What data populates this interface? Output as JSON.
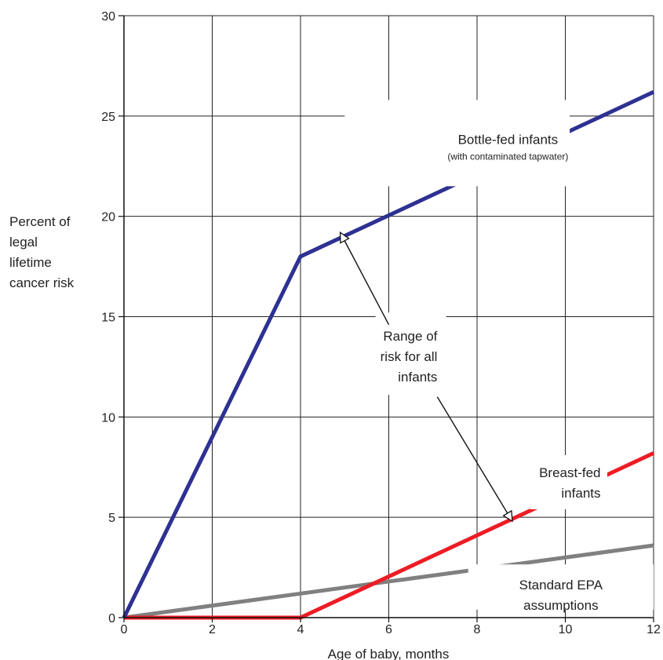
{
  "chart_data": {
    "type": "line",
    "title": "",
    "xlabel": "Age of baby, months",
    "ylabel": [
      "Percent of",
      "legal",
      "lifetime",
      "cancer risk"
    ],
    "xlim": [
      0,
      12
    ],
    "ylim": [
      0,
      30
    ],
    "x_ticks": [
      0,
      2,
      4,
      6,
      8,
      10,
      12
    ],
    "y_ticks": [
      0,
      5,
      10,
      15,
      20,
      25,
      30
    ],
    "grid": true,
    "legend": "none",
    "series": [
      {
        "name": "Bottle-fed infants",
        "color": "#2e3192",
        "points": [
          [
            0,
            0
          ],
          [
            4,
            18
          ],
          [
            12,
            26.2
          ]
        ]
      },
      {
        "name": "Breast-fed infants",
        "color": "#ed1c24",
        "points": [
          [
            0,
            0
          ],
          [
            4,
            0
          ],
          [
            12,
            8.2
          ]
        ]
      },
      {
        "name": "Standard EPA assumptions",
        "color": "#808080",
        "points": [
          [
            0,
            0
          ],
          [
            12,
            3.6
          ]
        ]
      }
    ],
    "annotations": [
      {
        "id": "bottle",
        "lines": [
          "Bottle-fed infants"
        ],
        "sub": "(with contaminated tapwater)",
        "x": 8.7,
        "y": 23.6,
        "anchor": "middle",
        "box": [
          5.0,
          21.5,
          10.1,
          25.8
        ]
      },
      {
        "id": "range",
        "lines": [
          "Range of",
          "risk for all",
          "infants"
        ],
        "x": 7.1,
        "y": 13.8,
        "anchor": "end",
        "box": [
          5.7,
          11.1,
          7.3,
          15.2
        ],
        "arrows": [
          {
            "from": [
              6.0,
              14.6
            ],
            "to": [
              4.9,
              19.2
            ]
          },
          {
            "from": [
              7.1,
              11.0
            ],
            "to": [
              8.8,
              4.8
            ]
          }
        ]
      },
      {
        "id": "breast",
        "lines": [
          "Breast-fed",
          "infants"
        ],
        "x": 10.8,
        "y": 7.0,
        "anchor": "end",
        "box": [
          9.2,
          5.4,
          10.95,
          8.1
        ]
      },
      {
        "id": "epa",
        "lines": [
          "Standard EPA",
          "assumptions"
        ],
        "x": 9.9,
        "y": 1.4,
        "anchor": "middle",
        "box": [
          7.8,
          0.4,
          12.0,
          2.65
        ]
      }
    ]
  }
}
